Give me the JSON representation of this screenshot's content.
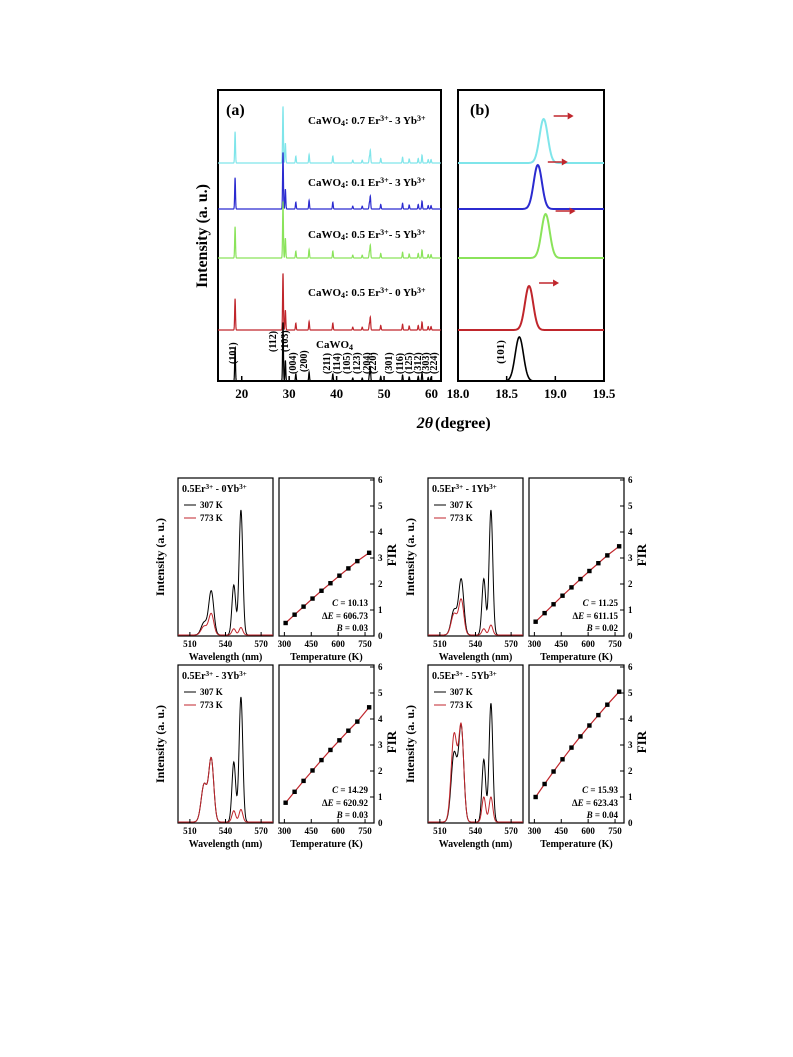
{
  "figure1": {
    "panel_a_label": "(a)",
    "panel_b_label": "(b)",
    "ylabel": "Intensity (a. u.)",
    "xlabel_symbol": "2θ",
    "xlabel_unit": "(degree)",
    "panel_a_xticks": [
      "20",
      "30",
      "40",
      "50",
      "60"
    ],
    "panel_b_xticks": [
      "18.0",
      "18.5",
      "19.0",
      "19.5"
    ],
    "reference_label": "CaWO4",
    "peak_label_b": "(101)"
  },
  "chart_data": [
    {
      "type": "line",
      "title": "(a)",
      "xlabel": "2θ (degree)",
      "ylabel": "Intensity (a. u.)",
      "xlim": [
        15,
        62
      ],
      "series": [
        {
          "name": "CaWO4: 0.7 Er3+ - 3 Yb3+",
          "color": "#7fe5ea"
        },
        {
          "name": "CaWO4: 0.1 Er3+ - 3 Yb3+",
          "color": "#2b2bd0"
        },
        {
          "name": "CaWO4: 0.5 Er3+ - 5 Yb3+",
          "color": "#8ae35a"
        },
        {
          "name": "CaWO4: 0.5 Er3+ - 0 Yb3+",
          "color": "#c0262c"
        },
        {
          "name": "CaWO4",
          "color": "#000000"
        }
      ],
      "peaks": [
        {
          "x": 18.6,
          "label": "(101)"
        },
        {
          "x": 28.7,
          "label": "(112)"
        },
        {
          "x": 29.2,
          "label": "(103)"
        },
        {
          "x": 31.4,
          "label": "(004)"
        },
        {
          "x": 34.2,
          "label": "(200)"
        },
        {
          "x": 39.2,
          "label": "(211)"
        },
        {
          "x": 43.4,
          "label": "(114)"
        },
        {
          "x": 45.4,
          "label": "(105)"
        },
        {
          "x": 46.9,
          "label": "(123)"
        },
        {
          "x": 47.1,
          "label": "(204)"
        },
        {
          "x": 49.3,
          "label": "(220)"
        },
        {
          "x": 53.9,
          "label": "(301)"
        },
        {
          "x": 55.3,
          "label": "(116)"
        },
        {
          "x": 57.2,
          "label": "(125)"
        },
        {
          "x": 58.0,
          "label": "(312)"
        },
        {
          "x": 59.3,
          "label": "(303)"
        },
        {
          "x": 59.9,
          "label": "(224)"
        }
      ]
    },
    {
      "type": "line",
      "title": "(b)",
      "xlabel": "2θ (degree)",
      "xlim": [
        18.0,
        19.5
      ],
      "series": [
        {
          "name": "CaWO4: 0.7 Er3+ - 3 Yb3+",
          "peak_x": 18.88,
          "color": "#7fe5ea"
        },
        {
          "name": "CaWO4: 0.1 Er3+ - 3 Yb3+",
          "peak_x": 18.82,
          "color": "#2b2bd0"
        },
        {
          "name": "CaWO4: 0.5 Er3+ - 5 Yb3+",
          "peak_x": 18.9,
          "color": "#8ae35a"
        },
        {
          "name": "CaWO4: 0.5 Er3+ - 0 Yb3+",
          "peak_x": 18.73,
          "color": "#c0262c"
        },
        {
          "name": "CaWO4",
          "peak_x": 18.63,
          "color": "#000000"
        }
      ]
    },
    {
      "type": "line",
      "title": "0.5Er3+ - 0Yb3+",
      "spectrum": {
        "xlabel": "Wavelength (nm)",
        "ylabel": "Intensity (a. u.)",
        "xticks": [
          "510",
          "540",
          "570"
        ],
        "legend": [
          "307 K",
          "773 K"
        ]
      },
      "fir": {
        "xlabel": "Temperature (K)",
        "ylabel": "FIR",
        "xticks": [
          "300",
          "450",
          "600",
          "750"
        ],
        "yticks": [
          "0",
          "1",
          "2",
          "3",
          "4",
          "5",
          "6"
        ],
        "x": [
          307,
          357,
          407,
          457,
          507,
          557,
          607,
          657,
          707,
          773
        ],
        "y": [
          0.5,
          0.82,
          1.13,
          1.44,
          1.74,
          2.03,
          2.32,
          2.6,
          2.88,
          3.2
        ],
        "C": "10.13",
        "dE": "606.73",
        "B": "0.03"
      }
    },
    {
      "type": "line",
      "title": "0.5Er3+ - 1Yb3+",
      "spectrum": {
        "xlabel": "Wavelength (nm)",
        "ylabel": "Intensity (a. u.)",
        "xticks": [
          "510",
          "540",
          "570"
        ],
        "legend": [
          "307 K",
          "773 K"
        ]
      },
      "fir": {
        "xlabel": "Temperature (K)",
        "ylabel": "FIR",
        "xticks": [
          "300",
          "450",
          "600",
          "750"
        ],
        "yticks": [
          "0",
          "1",
          "2",
          "3",
          "4",
          "5",
          "6"
        ],
        "x": [
          307,
          357,
          407,
          457,
          507,
          557,
          607,
          657,
          707,
          773
        ],
        "y": [
          0.55,
          0.88,
          1.22,
          1.55,
          1.87,
          2.19,
          2.5,
          2.8,
          3.1,
          3.45
        ],
        "C": "11.25",
        "dE": "611.15",
        "B": "0.02"
      }
    },
    {
      "type": "line",
      "title": "0.5Er3+ - 3Yb3+",
      "spectrum": {
        "xlabel": "Wavelength (nm)",
        "ylabel": "Intensity (a. u.)",
        "xticks": [
          "510",
          "540",
          "570"
        ],
        "legend": [
          "307 K",
          "773 K"
        ]
      },
      "fir": {
        "xlabel": "Temperature (K)",
        "ylabel": "FIR",
        "xticks": [
          "300",
          "450",
          "600",
          "750"
        ],
        "yticks": [
          "0",
          "1",
          "2",
          "3",
          "4",
          "5",
          "6"
        ],
        "x": [
          307,
          357,
          407,
          457,
          507,
          557,
          607,
          657,
          707,
          773
        ],
        "y": [
          0.78,
          1.2,
          1.62,
          2.02,
          2.42,
          2.81,
          3.18,
          3.55,
          3.9,
          4.45
        ],
        "C": "14.29",
        "dE": "620.92",
        "B": "0.03"
      }
    },
    {
      "type": "line",
      "title": "0.5Er3+ - 5Yb3+",
      "spectrum": {
        "xlabel": "Wavelength (nm)",
        "ylabel": "Intensity (a. u.)",
        "xticks": [
          "510",
          "540",
          "570"
        ],
        "legend": [
          "307 K",
          "773 K"
        ]
      },
      "fir": {
        "xlabel": "Temperature (K)",
        "ylabel": "FIR",
        "xticks": [
          "300",
          "450",
          "600",
          "750"
        ],
        "yticks": [
          "0",
          "1",
          "2",
          "3",
          "4",
          "5",
          "6"
        ],
        "x": [
          307,
          357,
          407,
          457,
          507,
          557,
          607,
          657,
          707,
          773
        ],
        "y": [
          1.0,
          1.5,
          1.98,
          2.45,
          2.9,
          3.33,
          3.75,
          4.15,
          4.55,
          5.05
        ],
        "C": "15.93",
        "dE": "623.43",
        "B": "0.04"
      }
    }
  ]
}
